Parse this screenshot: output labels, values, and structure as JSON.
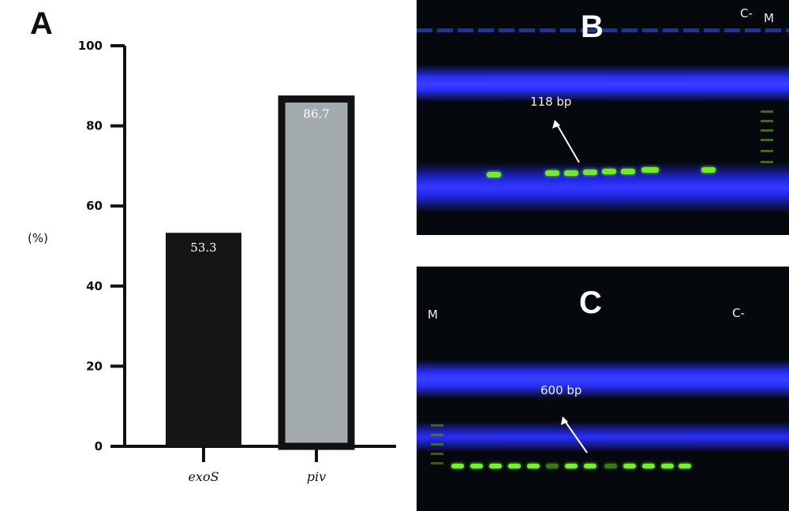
{
  "panels": {
    "a_label": "A",
    "b_label": "B",
    "c_label": "C"
  },
  "chart_data": {
    "type": "bar",
    "categories": [
      "exoS",
      "piv"
    ],
    "values": [
      53.3,
      86.7
    ],
    "data_labels": [
      "53.3",
      "86.7"
    ],
    "ylabel": "(%)",
    "ylim": [
      0,
      100
    ],
    "yticks": [
      0,
      20,
      40,
      60,
      80,
      100
    ],
    "colors": [
      "#151515",
      "#a4abae"
    ],
    "grid": false
  },
  "gel_b": {
    "band_label": "118 bp",
    "lane_labels": {
      "negative_control": "C-",
      "marker": "M"
    },
    "colors": {
      "band": "#7cff2a",
      "dye": "#2a2ff0"
    }
  },
  "gel_c": {
    "band_label": "600 bp",
    "lane_labels": {
      "marker": "M",
      "negative_control": "C-"
    },
    "colors": {
      "band": "#7cff2a",
      "dye": "#2a2ff0"
    }
  }
}
